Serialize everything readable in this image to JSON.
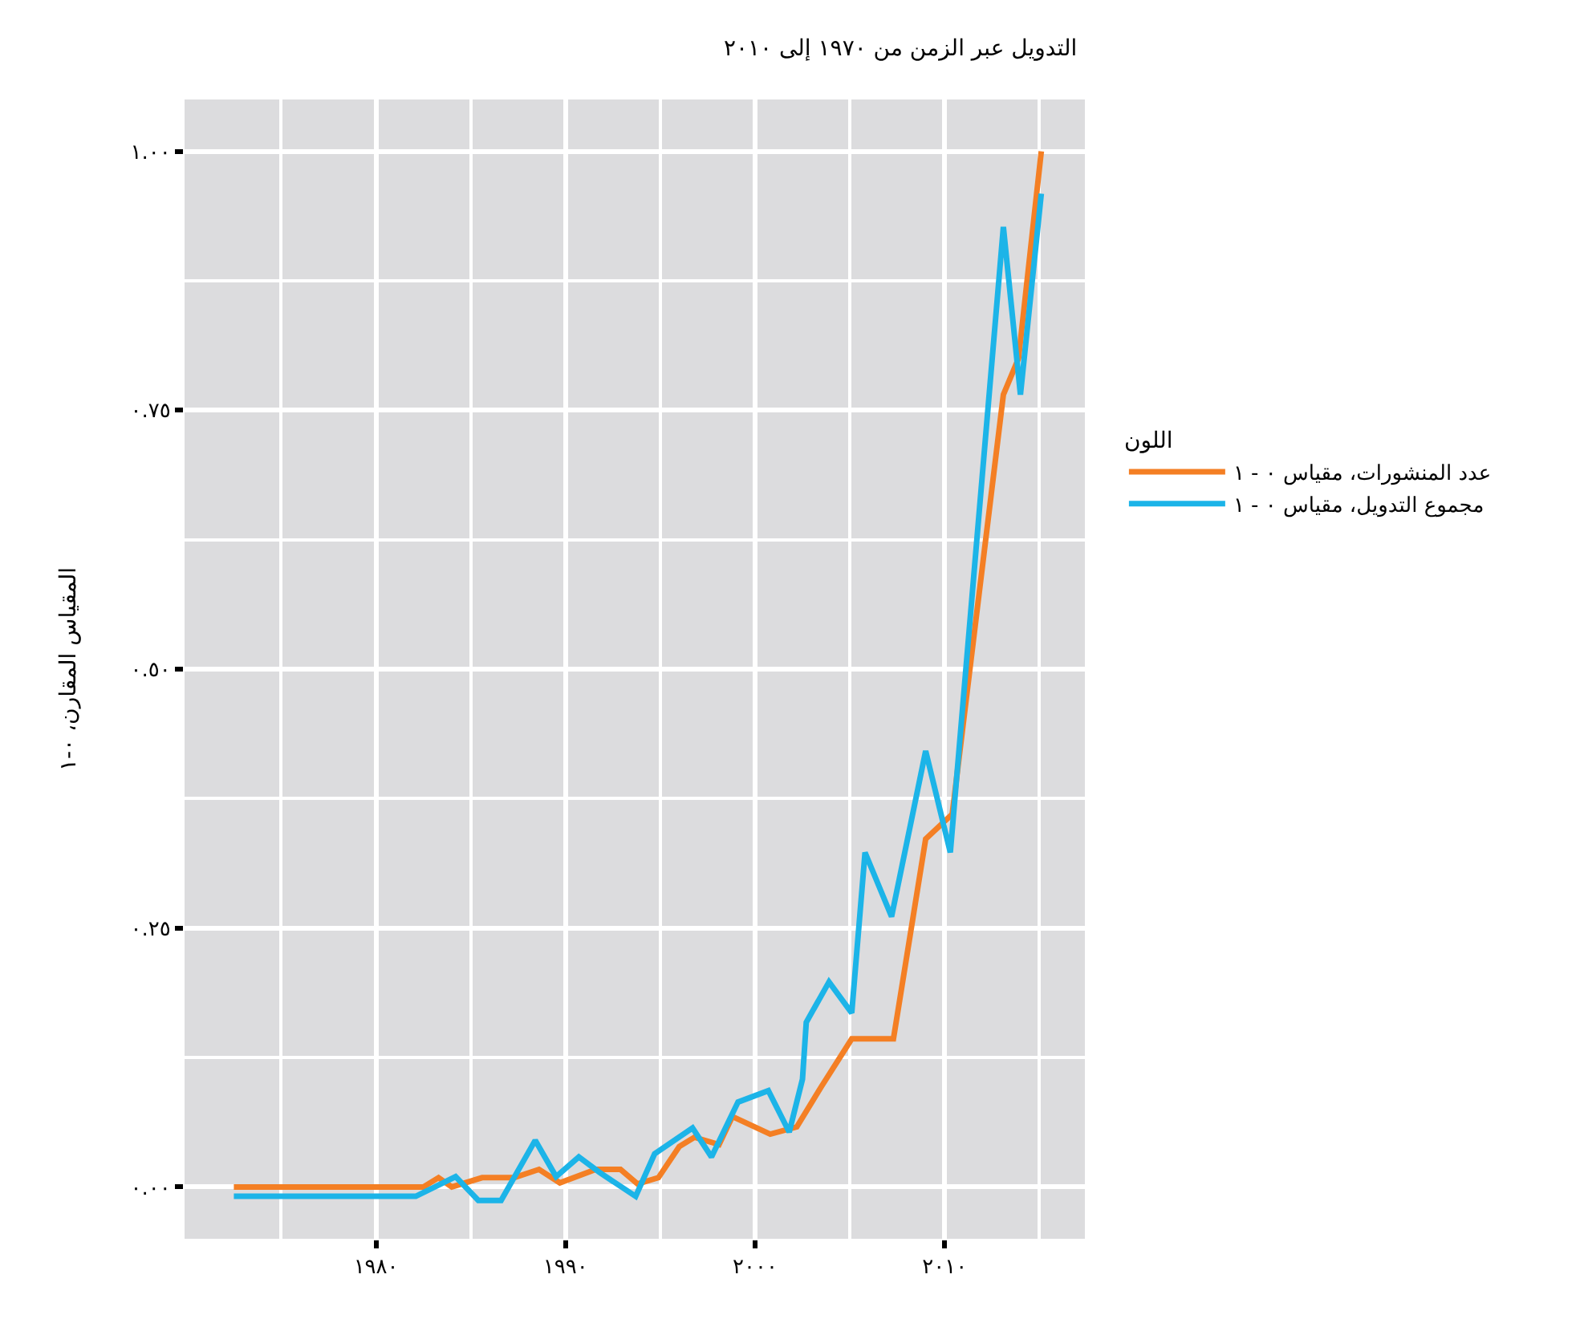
{
  "chart_data": {
    "type": "line",
    "title": "التدويل عبر الزمن من ١٩٧٠ إلى ٢٠١٠",
    "ylabel": "المقياس المقارن، ٠-١",
    "legend_title": "اللون",
    "legend": "right",
    "grid": true,
    "line_style": "solid",
    "marker": "none",
    "xlim": [
      1969.9,
      2017.4
    ],
    "ylim": [
      -0.05,
      1.05
    ],
    "xticks": [
      {
        "value": 1980,
        "label": "١٩٨٠"
      },
      {
        "value": 1990,
        "label": "١٩٩٠"
      },
      {
        "value": 2000,
        "label": "٢٠٠٠"
      },
      {
        "value": 2010,
        "label": "٢٠١٠"
      }
    ],
    "yticks": [
      {
        "value": 0,
        "label": "٠.٠٠"
      },
      {
        "value": 0.25,
        "label": "٠.٢٥"
      },
      {
        "value": 0.5,
        "label": "٠.٥٠"
      },
      {
        "value": 0.75,
        "label": "٠.٧٥"
      },
      {
        "value": 1,
        "label": "١.٠٠"
      }
    ],
    "series": [
      {
        "name": "عدد المنشورات، مقياس ٠ - ١",
        "color": "#f47f24",
        "x": [
          1972.5,
          1982.5,
          1983.3,
          1984.0,
          1985.6,
          1987.3,
          1988.6,
          1989.7,
          1991.6,
          1992.9,
          1993.8,
          1994.9,
          1996.0,
          1996.8,
          1998.1,
          1998.8,
          2000.8,
          2002.2,
          2003.5,
          2005.1,
          2007.3,
          2009.0,
          2010.4,
          2013.1,
          2013.9,
          2015.1
        ],
        "values": [
          0,
          0,
          0.009,
          0,
          0.009,
          0.009,
          0.017,
          0.004,
          0.017,
          0.017,
          0.003,
          0.009,
          0.039,
          0.048,
          0.041,
          0.068,
          0.051,
          0.058,
          0.097,
          0.143,
          0.143,
          0.336,
          0.36,
          0.765,
          0.8,
          1.0
        ]
      },
      {
        "name": "مجموع التدويل، مقياس ٠ - ١",
        "color": "#1cb4e8",
        "x": [
          1972.5,
          1982.1,
          1984.2,
          1985.4,
          1986.6,
          1988.4,
          1989.5,
          1990.7,
          1991.8,
          1993.7,
          1994.7,
          1996.7,
          1997.7,
          1999.1,
          2000.7,
          2001.8,
          2002.5,
          2002.7,
          2003.9,
          2005.1,
          2005.8,
          2007.2,
          2009.0,
          2010.3,
          2013.1,
          2014.0,
          2015.1
        ],
        "values": [
          -0.009,
          -0.009,
          0.01,
          -0.013,
          -0.013,
          0.045,
          0.01,
          0.029,
          0.014,
          -0.009,
          0.032,
          0.057,
          0.029,
          0.082,
          0.093,
          0.053,
          0.104,
          0.159,
          0.198,
          0.168,
          0.323,
          0.261,
          0.421,
          0.323,
          0.927,
          0.765,
          0.959
        ]
      }
    ]
  }
}
